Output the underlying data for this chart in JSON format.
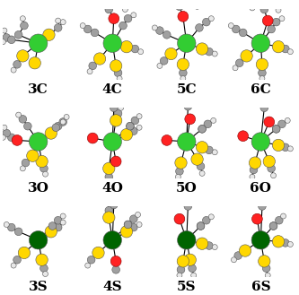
{
  "title": "",
  "background_color": "#ffffff",
  "grid_rows": 3,
  "grid_cols": 4,
  "labels": [
    [
      "3C",
      "4C",
      "5C",
      "6C"
    ],
    [
      "3O",
      "4O",
      "5O",
      "6O"
    ],
    [
      "3S",
      "4S",
      "5S",
      "6S"
    ]
  ],
  "label_fontsize": 11,
  "label_fontweight": "bold",
  "colors": {
    "Ir_bright": "#32cd32",
    "Ir_dark": "#006400",
    "S": "#ffd700",
    "C": "#a0a0a0",
    "H": "#e8e8e8",
    "O": "#ff2222",
    "P": "#ffd700"
  },
  "figsize": [
    3.33,
    3.29
  ],
  "dpi": 100
}
